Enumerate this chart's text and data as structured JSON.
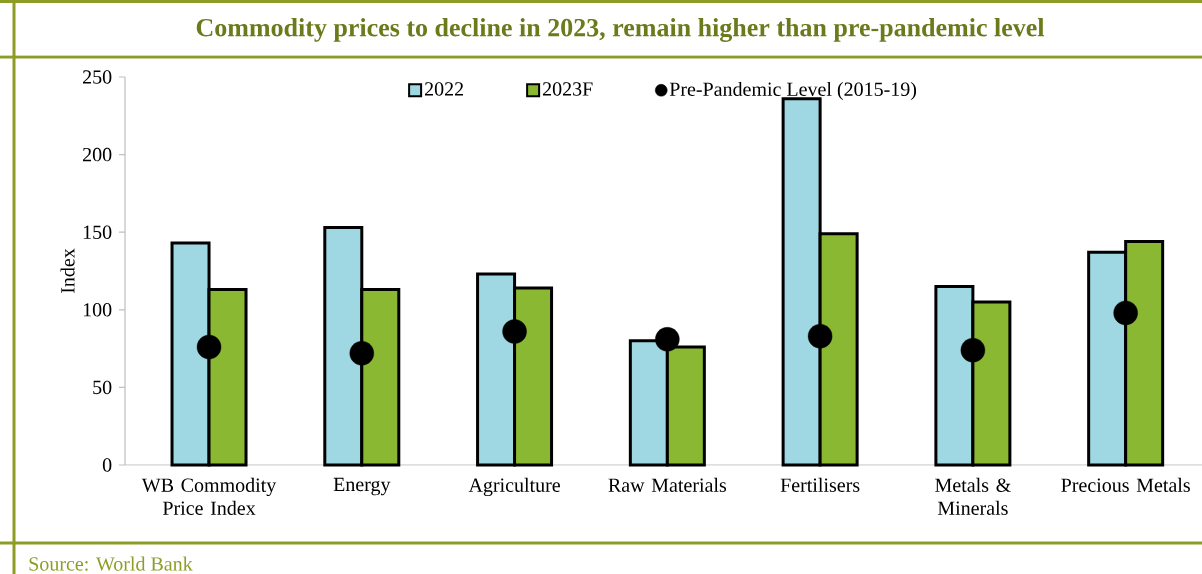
{
  "chart_data": {
    "type": "bar",
    "title": "Commodity prices to decline in 2023, remain higher than pre-pandemic level",
    "ylabel": "Index",
    "categories": [
      "WB Commodity Price Index",
      "Energy",
      "Agriculture",
      "Raw Materials",
      "Fertilisers",
      "Metals & Minerals",
      "Precious Metals"
    ],
    "series": [
      {
        "name": "2022",
        "color": "#9fd8e2",
        "values": [
          143,
          153,
          123,
          80,
          236,
          115,
          137
        ]
      },
      {
        "name": "2023F",
        "color": "#8ab833",
        "values": [
          113,
          113,
          114,
          76,
          149,
          105,
          144
        ]
      },
      {
        "name": "Pre-Pandemic Level (2015-19)",
        "type": "scatter",
        "marker": "circle",
        "color": "#000000",
        "values": [
          76,
          72,
          86,
          81,
          83,
          74,
          98
        ]
      }
    ],
    "ylim": [
      0,
      250
    ],
    "yticks": [
      0,
      50,
      100,
      150,
      200,
      250
    ],
    "legend": "top",
    "grid": false,
    "annotations": [
      "Source: World Bank"
    ]
  }
}
